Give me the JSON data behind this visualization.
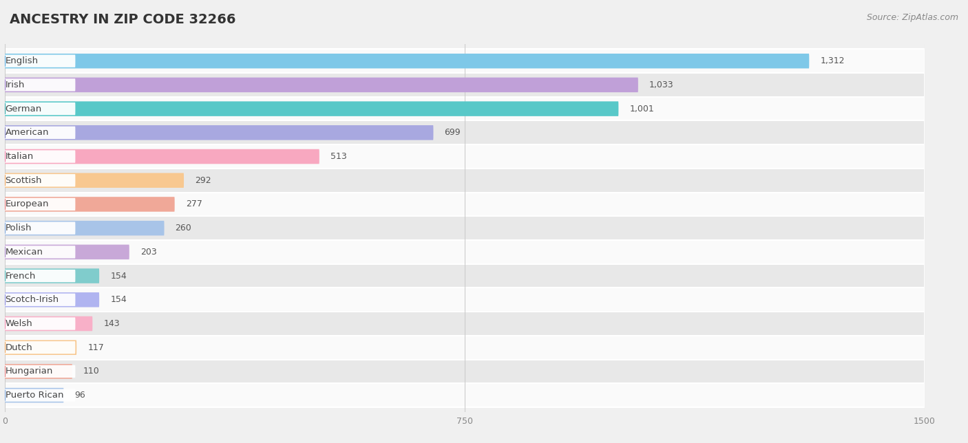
{
  "title": "ANCESTRY IN ZIP CODE 32266",
  "source": "Source: ZipAtlas.com",
  "categories": [
    "English",
    "Irish",
    "German",
    "American",
    "Italian",
    "Scottish",
    "European",
    "Polish",
    "Mexican",
    "French",
    "Scotch-Irish",
    "Welsh",
    "Dutch",
    "Hungarian",
    "Puerto Rican"
  ],
  "values": [
    1312,
    1033,
    1001,
    699,
    513,
    292,
    277,
    260,
    203,
    154,
    154,
    143,
    117,
    110,
    96
  ],
  "bar_colors": [
    "#7EC8E8",
    "#C0A0D8",
    "#58C8C8",
    "#A8A8E0",
    "#F8A8C0",
    "#F8C890",
    "#F0A898",
    "#A8C4E8",
    "#C8A8D8",
    "#80CCCC",
    "#B0B4F0",
    "#F8B0C8",
    "#F8C890",
    "#F0A898",
    "#A8C4E8"
  ],
  "dot_colors": [
    "#5AACE0",
    "#9B7EC8",
    "#38ACAC",
    "#8888C8",
    "#F080A8",
    "#F0A860",
    "#E88080",
    "#80A8DC",
    "#A888C8",
    "#50B4B4",
    "#9090E0",
    "#F090B0",
    "#F0A860",
    "#E88080",
    "#80A8DC"
  ],
  "xlim": [
    0,
    1500
  ],
  "xticks": [
    0,
    750,
    1500
  ],
  "background_color": "#f0f0f0",
  "bar_row_bg_light": "#fafafa",
  "bar_row_bg_dark": "#e8e8e8",
  "title_fontsize": 14,
  "source_fontsize": 9,
  "bar_height": 0.62,
  "value_fontsize": 9,
  "label_fontsize": 9.5
}
